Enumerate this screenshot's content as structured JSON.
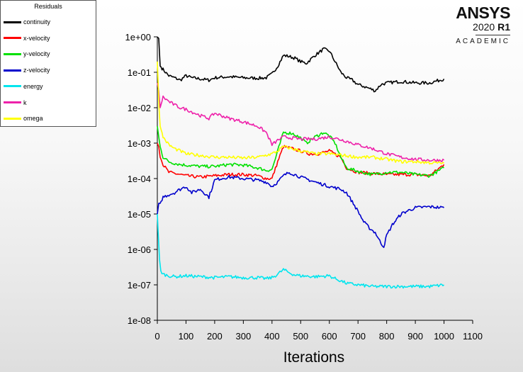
{
  "legend": {
    "title": "Residuals",
    "items": [
      {
        "label": "continuity",
        "color": "#000000"
      },
      {
        "label": "x-velocity",
        "color": "#ff0000"
      },
      {
        "label": "y-velocity",
        "color": "#00e000"
      },
      {
        "label": "z-velocity",
        "color": "#0000cc"
      },
      {
        "label": "energy",
        "color": "#00e5ee"
      },
      {
        "label": "k",
        "color": "#ee22aa"
      },
      {
        "label": "omega",
        "color": "#ffff00"
      }
    ]
  },
  "logo": {
    "brand": "ANSYS",
    "version_year": "2020",
    "version_release": "R1",
    "edition": "ACADEMIC"
  },
  "chart_data": {
    "type": "line",
    "title": "",
    "xlabel": "Iterations",
    "ylabel": "",
    "yscale": "log",
    "xlim": [
      0,
      1100
    ],
    "ylim": [
      1e-08,
      1
    ],
    "xticks": [
      "0",
      "100",
      "200",
      "300",
      "400",
      "500",
      "600",
      "700",
      "800",
      "900",
      "1000",
      "1100"
    ],
    "yticks": [
      "1e+00",
      "1e-01",
      "1e-02",
      "1e-03",
      "1e-04",
      "1e-05",
      "1e-06",
      "1e-07",
      "1e-08"
    ],
    "grid": false,
    "legend_position": "top-left",
    "series": [
      {
        "name": "continuity",
        "color": "#000000",
        "x": [
          0,
          5,
          10,
          20,
          40,
          60,
          80,
          100,
          120,
          150,
          180,
          200,
          250,
          300,
          350,
          380,
          400,
          420,
          440,
          460,
          480,
          500,
          520,
          550,
          580,
          600,
          620,
          640,
          660,
          680,
          700,
          720,
          740,
          760,
          780,
          800,
          850,
          900,
          950,
          1000
        ],
        "y": [
          1.0,
          0.9,
          0.15,
          0.12,
          0.08,
          0.07,
          0.06,
          0.08,
          0.07,
          0.065,
          0.06,
          0.07,
          0.075,
          0.07,
          0.068,
          0.07,
          0.09,
          0.15,
          0.3,
          0.28,
          0.25,
          0.2,
          0.18,
          0.3,
          0.45,
          0.4,
          0.2,
          0.1,
          0.07,
          0.06,
          0.045,
          0.04,
          0.035,
          0.03,
          0.045,
          0.05,
          0.055,
          0.05,
          0.05,
          0.065
        ]
      },
      {
        "name": "x-velocity",
        "color": "#ff0000",
        "x": [
          0,
          5,
          10,
          20,
          40,
          60,
          80,
          100,
          150,
          200,
          250,
          300,
          350,
          380,
          400,
          420,
          440,
          470,
          500,
          530,
          560,
          600,
          640,
          660,
          700,
          750,
          800,
          850,
          900,
          950,
          1000
        ],
        "y": [
          0.001,
          0.0008,
          0.0004,
          0.00025,
          0.00015,
          0.00014,
          0.00013,
          0.00012,
          0.00011,
          0.00012,
          0.00013,
          0.00013,
          0.00012,
          0.0001,
          0.0001,
          0.0003,
          0.0008,
          0.0007,
          0.0006,
          0.0005,
          0.0005,
          0.0006,
          0.0004,
          0.0002,
          0.00015,
          0.00014,
          0.00013,
          0.00013,
          0.00013,
          0.00012,
          0.00025
        ]
      },
      {
        "name": "y-velocity",
        "color": "#00e000",
        "x": [
          0,
          5,
          10,
          20,
          40,
          60,
          80,
          100,
          150,
          200,
          250,
          300,
          350,
          380,
          400,
          420,
          440,
          470,
          500,
          520,
          550,
          580,
          600,
          620,
          640,
          660,
          700,
          750,
          800,
          850,
          900,
          950,
          1000
        ],
        "y": [
          0.003,
          0.0015,
          0.0008,
          0.0004,
          0.0003,
          0.00027,
          0.00025,
          0.00024,
          0.00022,
          0.00022,
          0.00025,
          0.00024,
          0.0002,
          0.00017,
          0.00018,
          0.0006,
          0.002,
          0.0019,
          0.0014,
          0.001,
          0.0015,
          0.002,
          0.0016,
          0.001,
          0.0004,
          0.0002,
          0.00016,
          0.00013,
          0.00015,
          0.00015,
          0.00013,
          0.00012,
          0.0002
        ]
      },
      {
        "name": "z-velocity",
        "color": "#0000cc",
        "x": [
          0,
          5,
          10,
          20,
          40,
          60,
          80,
          100,
          120,
          150,
          180,
          200,
          220,
          250,
          300,
          350,
          380,
          400,
          420,
          440,
          460,
          500,
          550,
          600,
          640,
          660,
          700,
          720,
          740,
          760,
          780,
          790,
          800,
          820,
          850,
          880,
          900,
          950,
          1000
        ],
        "y": [
          1e-05,
          2e-05,
          2e-05,
          3e-05,
          3.5e-05,
          4e-05,
          5e-05,
          6e-05,
          4e-05,
          5e-05,
          3e-05,
          9e-05,
          0.0001,
          0.00011,
          0.0001,
          9e-05,
          8e-05,
          6e-05,
          8e-05,
          0.00012,
          0.00015,
          0.00011,
          8e-05,
          6e-05,
          5e-05,
          4e-05,
          1.2e-05,
          6e-06,
          4e-06,
          3e-06,
          1.5e-06,
          1.2e-06,
          2.5e-06,
          5e-06,
          1e-05,
          1.3e-05,
          1.5e-05,
          1.6e-05,
          1.5e-05
        ]
      },
      {
        "name": "energy",
        "color": "#00e5ee",
        "x": [
          0,
          4,
          8,
          12,
          20,
          40,
          60,
          100,
          150,
          200,
          250,
          300,
          350,
          380,
          400,
          420,
          440,
          460,
          480,
          500,
          550,
          600,
          620,
          640,
          660,
          700,
          750,
          800,
          850,
          900,
          950,
          1000
        ],
        "y": [
          1e-05,
          2e-06,
          5e-07,
          2.5e-07,
          2e-07,
          1.8e-07,
          1.7e-07,
          1.8e-07,
          1.7e-07,
          1.6e-07,
          1.7e-07,
          1.6e-07,
          1.6e-07,
          1.5e-07,
          1.6e-07,
          2e-07,
          2.7e-07,
          2.2e-07,
          1.9e-07,
          1.8e-07,
          1.7e-07,
          1.8e-07,
          1.5e-07,
          1.3e-07,
          1.1e-07,
          1e-07,
          9e-08,
          9e-08,
          9e-08,
          9e-08,
          9e-08,
          1e-07
        ]
      },
      {
        "name": "k",
        "color": "#ee22aa",
        "x": [
          0,
          5,
          10,
          20,
          40,
          60,
          80,
          100,
          150,
          180,
          200,
          250,
          300,
          350,
          380,
          400,
          420,
          440,
          470,
          500,
          550,
          600,
          650,
          700,
          750,
          800,
          850,
          900,
          950,
          1000
        ],
        "y": [
          0.05,
          0.03,
          0.01,
          0.02,
          0.015,
          0.012,
          0.01,
          0.009,
          0.006,
          0.005,
          0.007,
          0.005,
          0.004,
          0.003,
          0.002,
          0.0009,
          0.0012,
          0.0015,
          0.0014,
          0.0013,
          0.0013,
          0.0015,
          0.0012,
          0.0009,
          0.0007,
          0.0005,
          0.0004,
          0.00035,
          0.00033,
          0.00033
        ]
      },
      {
        "name": "omega",
        "color": "#ffff00",
        "x": [
          0,
          3,
          6,
          10,
          20,
          40,
          60,
          80,
          100,
          150,
          200,
          250,
          300,
          350,
          400,
          420,
          440,
          470,
          500,
          550,
          600,
          650,
          700,
          750,
          800,
          850,
          900,
          950,
          1000
        ],
        "y": [
          0.2,
          0.05,
          0.01,
          0.003,
          0.0015,
          0.0009,
          0.0007,
          0.0006,
          0.0005,
          0.00045,
          0.0004,
          0.0004,
          0.00038,
          0.0004,
          0.0005,
          0.0006,
          0.0008,
          0.0007,
          0.0006,
          0.0005,
          0.0005,
          0.00045,
          0.0004,
          0.0004,
          0.00035,
          0.0003,
          0.0003,
          0.00028,
          0.00027
        ]
      }
    ]
  }
}
